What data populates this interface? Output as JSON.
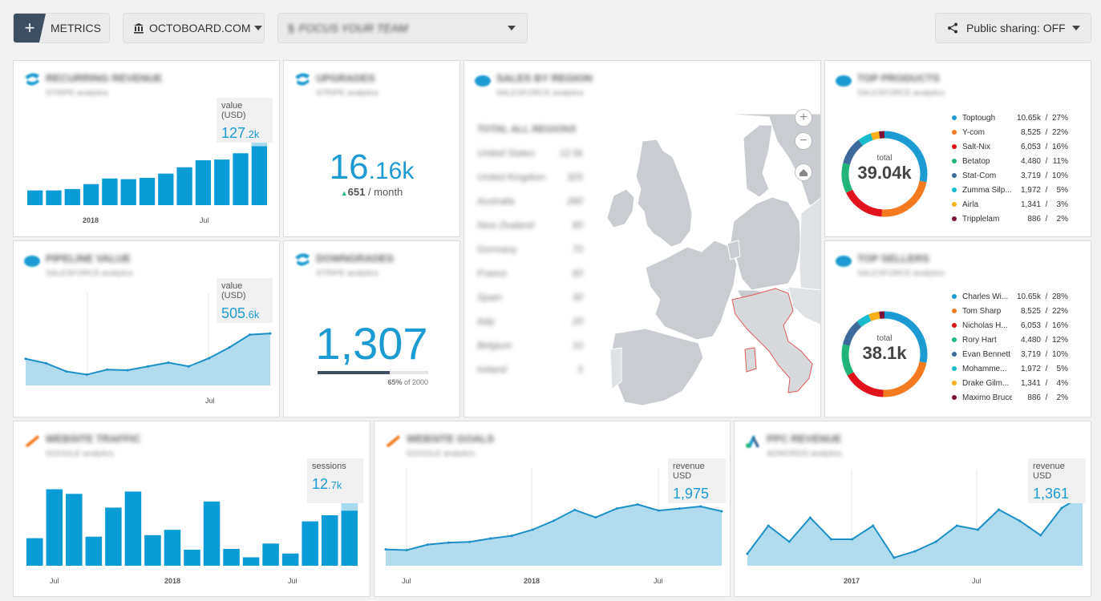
{
  "toolbar": {
    "metrics_label": "METRICS",
    "source_label": "OCTOBOARD.COM",
    "team_label": "FOCUS YOUR TEAM",
    "share_label": "Public sharing: OFF"
  },
  "widgets": {
    "recurring": {
      "title": "RECURRING REVENUE",
      "subtitle": "STRIPE analytics",
      "value_label": "value (USD)",
      "value_main": "127",
      "value_dec": ".2k",
      "x_labels": [
        "2018",
        "Jul"
      ]
    },
    "upgrades": {
      "title": "UPGRADES",
      "subtitle": "STRIPE analytics",
      "value_main": "16",
      "value_dec": ".16k",
      "change": "651",
      "per": "/ month"
    },
    "pipeline": {
      "title": "PIPELINE VALUE",
      "subtitle": "SALESFORCE analytics",
      "value_label": "value (USD)",
      "value_main": "505",
      "value_dec": ".6k",
      "x_labels": [
        "Jul"
      ]
    },
    "downgrades": {
      "title": "DOWNGRADES",
      "subtitle": "STRIPE analytics",
      "value": "1,307",
      "progress": 0.65,
      "progress_label": "65%",
      "progress_of": "of 2000"
    },
    "sales_region": {
      "title": "SALES BY REGION",
      "subtitle": "SALESFORCE analytics",
      "list_header": "TOTAL   ALL REGIONS",
      "rows": [
        {
          "name": "United States",
          "val": "12.5k"
        },
        {
          "name": "United Kingdom",
          "val": "325"
        },
        {
          "name": "Australia",
          "val": "280"
        },
        {
          "name": "New Zealand",
          "val": "80"
        },
        {
          "name": "Germany",
          "val": "70"
        },
        {
          "name": "France",
          "val": "60"
        },
        {
          "name": "Spain",
          "val": "30"
        },
        {
          "name": "Italy",
          "val": "20"
        },
        {
          "name": "Belgium",
          "val": "10"
        },
        {
          "name": "Ireland",
          "val": "5"
        }
      ]
    },
    "top_products": {
      "title": "TOP PRODUCTS",
      "subtitle": "SALESFORCE analytics",
      "total_label": "total",
      "total": "39.04k",
      "items": [
        {
          "name": "Toptough",
          "value": "10.65k",
          "pct": "27%",
          "color": "#1b9bd1"
        },
        {
          "name": "Y-com",
          "value": "8,525",
          "pct": "22%",
          "color": "#f47a20"
        },
        {
          "name": "Salt-Nix",
          "value": "6,053",
          "pct": "16%",
          "color": "#e1121b"
        },
        {
          "name": "Betatop",
          "value": "4,480",
          "pct": "11%",
          "color": "#1fb47a"
        },
        {
          "name": "Stat-Com",
          "value": "3,719",
          "pct": "10%",
          "color": "#3c6a9a"
        },
        {
          "name": "Zumma Silp...",
          "value": "1,972",
          "pct": "5%",
          "color": "#18bccc"
        },
        {
          "name": "Airla",
          "value": "1,341",
          "pct": "3%",
          "color": "#f5b01a"
        },
        {
          "name": "Tripplelam",
          "value": "886",
          "pct": "2%",
          "color": "#7c1238"
        }
      ]
    },
    "top_sellers": {
      "title": "TOP SELLERS",
      "subtitle": "SALESFORCE analytics",
      "total_label": "total",
      "total": "38.1k",
      "items": [
        {
          "name": "Charles Wi...",
          "value": "10.65k",
          "pct": "28%",
          "color": "#1b9bd1"
        },
        {
          "name": "Tom Sharp",
          "value": "8,525",
          "pct": "22%",
          "color": "#f47a20"
        },
        {
          "name": "Nicholas H...",
          "value": "6,053",
          "pct": "16%",
          "color": "#e1121b"
        },
        {
          "name": "Rory Hart",
          "value": "4,480",
          "pct": "12%",
          "color": "#1fb47a"
        },
        {
          "name": "Evan Bennett",
          "value": "3,719",
          "pct": "10%",
          "color": "#3c6a9a"
        },
        {
          "name": "Mohamme...",
          "value": "1,972",
          "pct": "5%",
          "color": "#18bccc"
        },
        {
          "name": "Drake Gilm...",
          "value": "1,341",
          "pct": "4%",
          "color": "#f5b01a"
        },
        {
          "name": "Maximo Bruce",
          "value": "886",
          "pct": "2%",
          "color": "#7c1238"
        }
      ]
    },
    "traffic": {
      "title": "WEBSITE TRAFFIC",
      "subtitle": "GOOGLE analytics",
      "value_label": "sessions",
      "value_main": "12",
      "value_dec": ".7k",
      "x_labels": [
        "Jul",
        "2018",
        "Jul"
      ]
    },
    "goals": {
      "title": "WEBSITE GOALS",
      "subtitle": "GOOGLE analytics",
      "value_label": "revenue USD",
      "value": "1,975",
      "x_labels": [
        "Jul",
        "2018",
        "Jul"
      ]
    },
    "ppc": {
      "title": "PPC REVENUE",
      "subtitle": "ADWORDS analytics",
      "value_label": "revenue USD",
      "value": "1,361",
      "x_labels": [
        "2017",
        "Jul"
      ]
    }
  },
  "chart_data": [
    {
      "type": "bar",
      "name": "recurring",
      "values": [
        21,
        21,
        23,
        30,
        38,
        37,
        39,
        45,
        54,
        64,
        65,
        74,
        84
      ],
      "ylim": [
        0,
        120
      ]
    },
    {
      "type": "area",
      "name": "pipeline",
      "values": [
        42,
        35,
        22,
        17,
        25,
        24,
        30,
        36,
        30,
        43,
        60,
        80,
        82
      ],
      "ylim": [
        0,
        120
      ]
    },
    {
      "type": "bar",
      "name": "traffic",
      "values": [
        36,
        100,
        94,
        38,
        76,
        97,
        40,
        47,
        21,
        84,
        22,
        11,
        29,
        16,
        58,
        66,
        72
      ],
      "ylim": [
        0,
        110
      ]
    },
    {
      "type": "area",
      "name": "goals",
      "values": [
        24,
        23,
        31,
        34,
        35,
        40,
        44,
        53,
        66,
        82,
        71,
        84,
        90,
        81,
        84,
        87,
        80
      ],
      "ylim": [
        0,
        120
      ]
    },
    {
      "type": "area",
      "name": "ppc",
      "values": [
        15,
        50,
        30,
        60,
        33,
        33,
        50,
        10,
        18,
        30,
        50,
        45,
        70,
        56,
        38,
        72,
        88
      ],
      "ylim": [
        0,
        100
      ]
    }
  ]
}
